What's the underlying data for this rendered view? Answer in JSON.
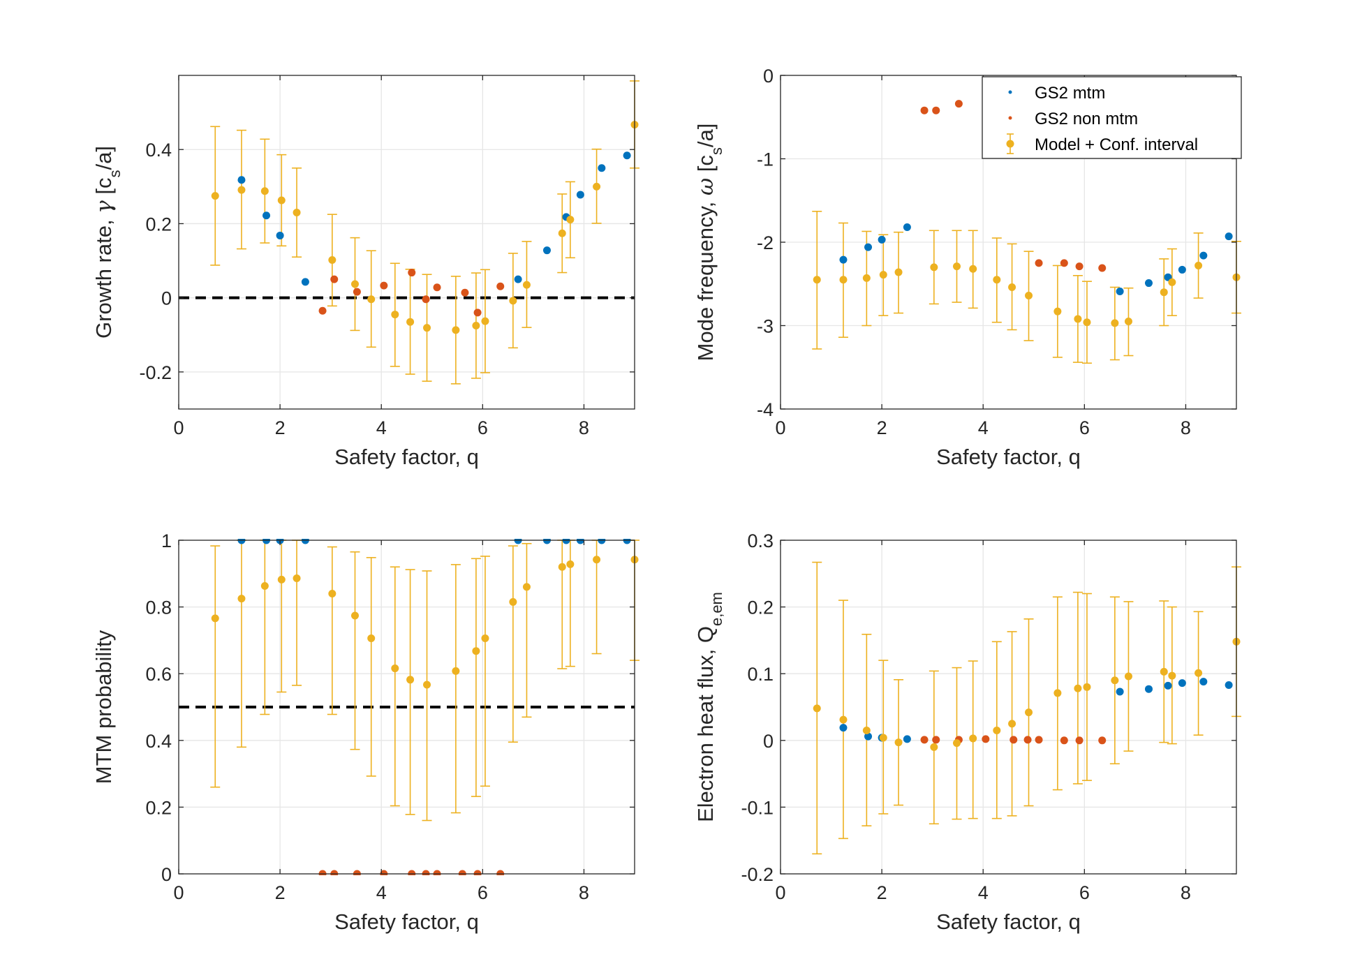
{
  "colors": {
    "mtm": "#0072BD",
    "nonmtm": "#D95319",
    "model": "#EDB120"
  },
  "legend": {
    "mtm": "GS2 mtm",
    "nonmtm": "GS2 non mtm",
    "model": "Model + Conf. interval"
  },
  "chart_data": [
    {
      "type": "scatter",
      "id": "growth",
      "title": "",
      "xlabel": "Safety factor, q",
      "ylabel_main": "Growth rate, ",
      "ylabel_greek": "γ",
      "ylabel_unit": " [c",
      "ylabel_sub": "s",
      "ylabel_tail": "/a]",
      "xlim": [
        0,
        9
      ],
      "ylim": [
        -0.3,
        0.6
      ],
      "xticks": [
        0,
        2,
        4,
        6,
        8
      ],
      "xtick_labels": [
        "0",
        "2",
        "4",
        "6",
        "8"
      ],
      "yticks": [
        -0.2,
        0,
        0.2,
        0.4
      ],
      "ytick_labels": [
        "-0.2",
        "0",
        "0.2",
        "0.4"
      ],
      "reference_line": 0,
      "series": [
        {
          "name": "GS2 mtm",
          "x": [
            1.24,
            1.73,
            2.0,
            2.5,
            6.7,
            7.27,
            7.65,
            7.93,
            8.35,
            8.85
          ],
          "y": [
            0.318,
            0.222,
            0.168,
            0.043,
            0.05,
            0.128,
            0.218,
            0.278,
            0.35,
            0.384
          ]
        },
        {
          "name": "GS2 non mtm",
          "x": [
            2.84,
            3.07,
            3.52,
            4.05,
            4.6,
            4.88,
            5.1,
            5.65,
            5.9,
            6.35
          ],
          "y": [
            -0.035,
            0.05,
            0.016,
            0.033,
            0.068,
            -0.004,
            0.028,
            0.014,
            -0.04,
            0.031
          ]
        },
        {
          "name": "Model + Conf. interval",
          "x": [
            0.72,
            1.24,
            1.7,
            2.03,
            2.33,
            3.03,
            3.48,
            3.8,
            4.27,
            4.57,
            4.9,
            5.47,
            5.87,
            6.05,
            6.6,
            6.87,
            7.57,
            7.73,
            8.25,
            9.0
          ],
          "y": [
            0.275,
            0.291,
            0.288,
            0.263,
            0.23,
            0.102,
            0.037,
            -0.004,
            -0.045,
            -0.065,
            -0.081,
            -0.087,
            -0.075,
            -0.063,
            -0.008,
            0.035,
            0.174,
            0.211,
            0.3,
            0.467
          ],
          "lower": [
            0.088,
            0.132,
            0.148,
            0.14,
            0.11,
            -0.022,
            -0.088,
            -0.133,
            -0.185,
            -0.206,
            -0.225,
            -0.232,
            -0.217,
            -0.202,
            -0.135,
            -0.08,
            0.068,
            0.108,
            0.201,
            0.35
          ],
          "upper": [
            0.462,
            0.452,
            0.428,
            0.386,
            0.35,
            0.225,
            0.162,
            0.127,
            0.093,
            0.077,
            0.063,
            0.058,
            0.067,
            0.076,
            0.12,
            0.152,
            0.28,
            0.313,
            0.401,
            0.585
          ]
        }
      ]
    },
    {
      "type": "scatter",
      "id": "frequency",
      "title": "",
      "xlabel": "Safety factor, q",
      "ylabel_main": "Mode frequency, ",
      "ylabel_greek": "ω",
      "ylabel_unit": " [c",
      "ylabel_sub": "s",
      "ylabel_tail": "/a]",
      "xlim": [
        0,
        9
      ],
      "ylim": [
        -4,
        0
      ],
      "xticks": [
        0,
        2,
        4,
        6,
        8
      ],
      "xtick_labels": [
        "0",
        "2",
        "4",
        "6",
        "8"
      ],
      "yticks": [
        -4,
        -3,
        -2,
        -1,
        0
      ],
      "ytick_labels": [
        "-4",
        "-3",
        "-2",
        "-1",
        "0"
      ],
      "legend": "top-right",
      "series": [
        {
          "name": "GS2 mtm",
          "x": [
            1.24,
            1.73,
            2.0,
            2.5,
            6.7,
            7.27,
            7.65,
            7.93,
            8.35,
            8.85
          ],
          "y": [
            -2.21,
            -2.06,
            -1.97,
            -1.82,
            -2.59,
            -2.49,
            -2.42,
            -2.33,
            -2.16,
            -1.93
          ]
        },
        {
          "name": "GS2 non mtm",
          "x": [
            2.84,
            3.07,
            3.52,
            5.1,
            5.6,
            5.9,
            6.35
          ],
          "y": [
            -0.42,
            -0.42,
            -0.34,
            -2.25,
            -2.25,
            -2.29,
            -2.31
          ]
        },
        {
          "name": "Model + Conf. interval",
          "x": [
            0.72,
            1.24,
            1.7,
            2.03,
            2.33,
            3.03,
            3.48,
            3.8,
            4.27,
            4.57,
            4.9,
            5.47,
            5.87,
            6.05,
            6.6,
            6.87,
            7.57,
            7.73,
            8.25,
            9.0
          ],
          "y": [
            -2.45,
            -2.45,
            -2.43,
            -2.39,
            -2.36,
            -2.3,
            -2.29,
            -2.32,
            -2.45,
            -2.54,
            -2.64,
            -2.83,
            -2.92,
            -2.96,
            -2.97,
            -2.95,
            -2.6,
            -2.48,
            -2.28,
            -2.42
          ],
          "lower": [
            -3.28,
            -3.14,
            -3.0,
            -2.88,
            -2.85,
            -2.74,
            -2.72,
            -2.79,
            -2.96,
            -3.05,
            -3.18,
            -3.38,
            -3.44,
            -3.45,
            -3.41,
            -3.36,
            -3.0,
            -2.88,
            -2.67,
            -2.85
          ],
          "upper": [
            -1.63,
            -1.77,
            -1.87,
            -1.91,
            -1.88,
            -1.86,
            -1.86,
            -1.86,
            -1.95,
            -2.02,
            -2.11,
            -2.28,
            -2.4,
            -2.47,
            -2.54,
            -2.55,
            -2.2,
            -2.08,
            -1.89,
            -1.99
          ]
        }
      ]
    },
    {
      "type": "scatter",
      "id": "probability",
      "title": "",
      "xlabel": "Safety factor, q",
      "ylabel_main": "MTM probability",
      "xlim": [
        0,
        9
      ],
      "ylim": [
        0,
        1
      ],
      "xticks": [
        0,
        2,
        4,
        6,
        8
      ],
      "xtick_labels": [
        "0",
        "2",
        "4",
        "6",
        "8"
      ],
      "yticks": [
        0,
        0.2,
        0.4,
        0.6,
        0.8,
        1
      ],
      "ytick_labels": [
        "0",
        "0.2",
        "0.4",
        "0.6",
        "0.8",
        "1"
      ],
      "reference_line": 0.5,
      "series": [
        {
          "name": "GS2 mtm",
          "x": [
            1.24,
            1.73,
            2.0,
            2.5,
            6.7,
            7.27,
            7.65,
            7.93,
            8.35,
            8.85
          ],
          "y": [
            1,
            1,
            1,
            1,
            1,
            1,
            1,
            1,
            1,
            1
          ]
        },
        {
          "name": "GS2 non mtm",
          "x": [
            2.84,
            3.07,
            3.52,
            4.05,
            4.6,
            4.88,
            5.1,
            5.6,
            5.9,
            6.35
          ],
          "y": [
            0,
            0,
            0,
            0,
            0,
            0,
            0,
            0,
            0,
            0
          ]
        },
        {
          "name": "Model + Conf. interval",
          "x": [
            0.72,
            1.24,
            1.7,
            2.03,
            2.33,
            3.03,
            3.48,
            3.8,
            4.27,
            4.57,
            4.9,
            5.47,
            5.87,
            6.05,
            6.6,
            6.87,
            7.57,
            7.73,
            8.25,
            9.0
          ],
          "y": [
            0.766,
            0.825,
            0.863,
            0.882,
            0.886,
            0.84,
            0.774,
            0.706,
            0.616,
            0.582,
            0.567,
            0.608,
            0.668,
            0.706,
            0.815,
            0.86,
            0.92,
            0.928,
            0.942,
            0.942
          ],
          "lower": [
            0.26,
            0.38,
            0.478,
            0.545,
            0.565,
            0.478,
            0.373,
            0.293,
            0.204,
            0.178,
            0.16,
            0.183,
            0.232,
            0.263,
            0.395,
            0.47,
            0.615,
            0.622,
            0.66,
            0.64
          ],
          "upper": [
            0.983,
            1.0,
            1.0,
            1.0,
            1.0,
            0.98,
            0.965,
            0.948,
            0.92,
            0.912,
            0.908,
            0.927,
            0.945,
            0.952,
            0.983,
            0.99,
            1.0,
            1.0,
            1.0,
            1.0
          ]
        }
      ]
    },
    {
      "type": "scatter",
      "id": "heatflux",
      "title": "",
      "xlabel": "Safety factor, q",
      "ylabel_main": "Electron heat flux, Q",
      "ylabel_sub": "e,em",
      "xlim": [
        0,
        9
      ],
      "ylim": [
        -0.2,
        0.3
      ],
      "xticks": [
        0,
        2,
        4,
        6,
        8
      ],
      "xtick_labels": [
        "0",
        "2",
        "4",
        "6",
        "8"
      ],
      "yticks": [
        -0.2,
        -0.1,
        0,
        0.1,
        0.2,
        0.3
      ],
      "ytick_labels": [
        "-0.2",
        "-0.1",
        "0",
        "0.1",
        "0.2",
        "0.3"
      ],
      "series": [
        {
          "name": "GS2 mtm",
          "x": [
            1.24,
            1.73,
            2.0,
            2.5,
            6.7,
            7.27,
            7.65,
            7.93,
            8.35,
            8.85
          ],
          "y": [
            0.019,
            0.006,
            0.004,
            0.002,
            0.073,
            0.077,
            0.082,
            0.086,
            0.088,
            0.083
          ]
        },
        {
          "name": "GS2 non mtm",
          "x": [
            2.84,
            3.07,
            3.52,
            4.05,
            4.6,
            4.88,
            5.1,
            5.6,
            5.9,
            6.35
          ],
          "y": [
            0.001,
            0.001,
            0.001,
            0.002,
            0.001,
            0.001,
            0.001,
            0.0,
            0.0,
            0.0
          ]
        },
        {
          "name": "Model + Conf. interval",
          "x": [
            0.72,
            1.24,
            1.7,
            2.03,
            2.33,
            3.03,
            3.48,
            3.8,
            4.27,
            4.57,
            4.9,
            5.47,
            5.87,
            6.05,
            6.6,
            6.87,
            7.57,
            7.73,
            8.25,
            9.0
          ],
          "y": [
            0.048,
            0.031,
            0.015,
            0.004,
            -0.003,
            -0.01,
            -0.004,
            0.003,
            0.015,
            0.025,
            0.042,
            0.071,
            0.078,
            0.08,
            0.09,
            0.096,
            0.103,
            0.097,
            0.101,
            0.148
          ],
          "lower": [
            -0.17,
            -0.147,
            -0.128,
            -0.11,
            -0.097,
            -0.125,
            -0.118,
            -0.117,
            -0.117,
            -0.113,
            -0.098,
            -0.074,
            -0.065,
            -0.06,
            -0.035,
            -0.016,
            -0.003,
            -0.005,
            0.008,
            0.036
          ],
          "upper": [
            0.267,
            0.21,
            0.159,
            0.12,
            0.091,
            0.104,
            0.109,
            0.119,
            0.148,
            0.163,
            0.182,
            0.215,
            0.222,
            0.22,
            0.215,
            0.208,
            0.209,
            0.2,
            0.193,
            0.26
          ]
        }
      ]
    }
  ]
}
